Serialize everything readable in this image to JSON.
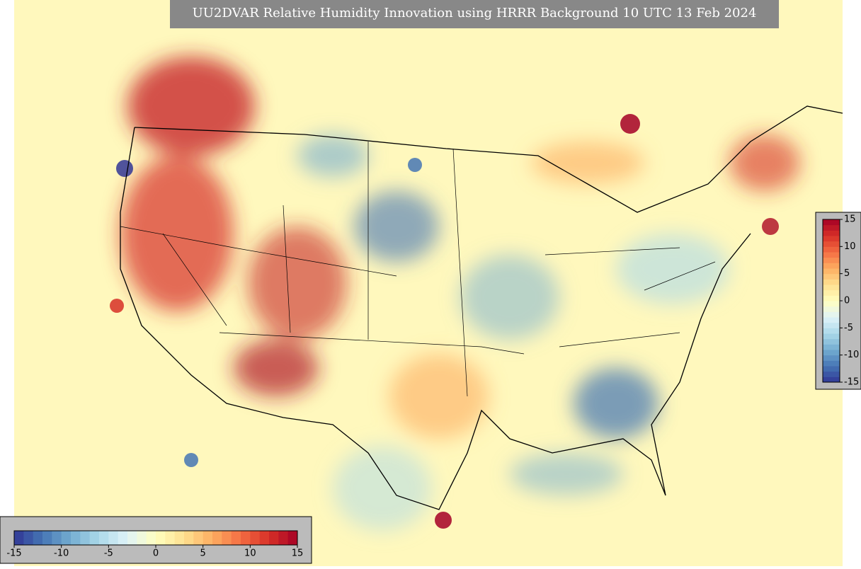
{
  "title": "UU2DVAR Relative Humidity Innovation using HRRR Background 10 UTC 13 Feb 2024",
  "colormap": [
    "#313695",
    "#4575b4",
    "#74add1",
    "#abd9e9",
    "#e0f3f8",
    "#ffffbf",
    "#fee090",
    "#fdae61",
    "#f46d43",
    "#d73027",
    "#a50026"
  ],
  "horizontal_colorbar": {
    "range": [
      -15,
      15
    ],
    "ticks": [
      -15,
      -10,
      -5,
      0,
      5,
      10,
      15
    ]
  },
  "vertical_colorbar": {
    "range": [
      -15,
      15
    ],
    "ticks": [
      -15,
      -10,
      -5,
      0,
      5,
      10,
      15
    ]
  }
}
